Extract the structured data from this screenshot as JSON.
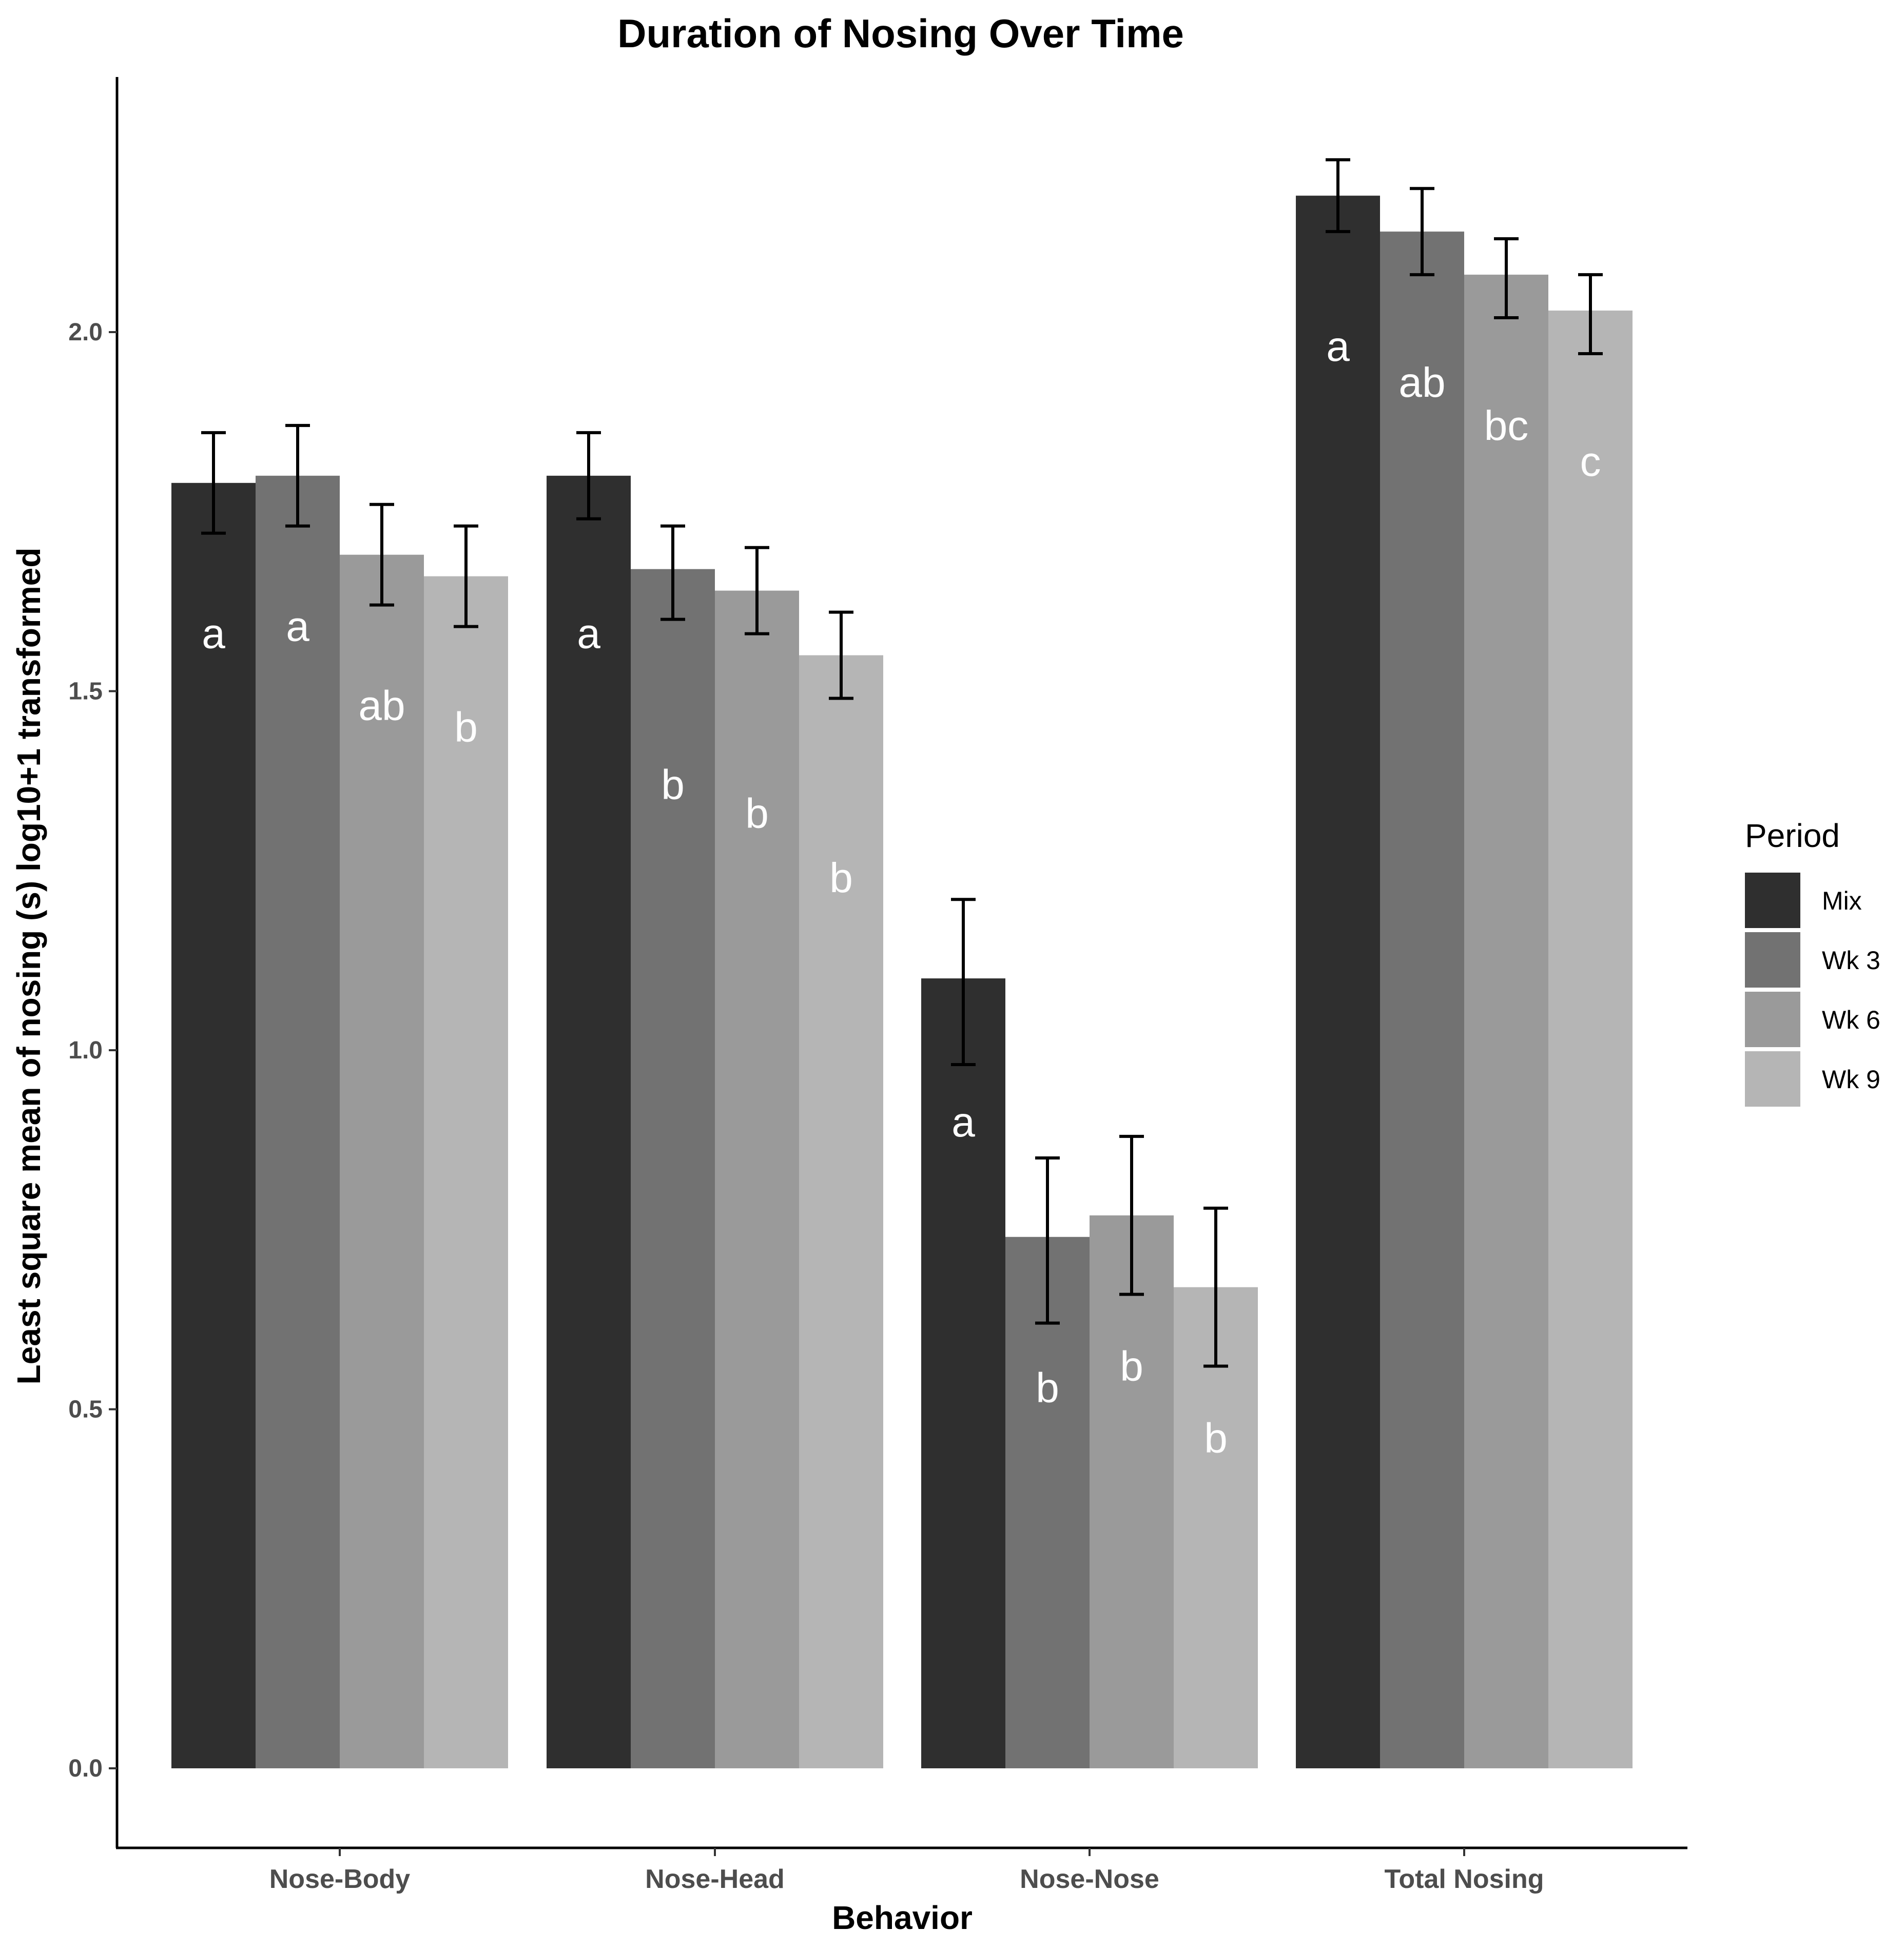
{
  "chart_data": {
    "type": "bar",
    "title": "Duration of Nosing Over Time",
    "xlabel": "Behavior",
    "ylabel": "Least square mean of nosing (s) log10+1 transformed",
    "ylim": [
      -0.11,
      2.35
    ],
    "yticks": [
      0.0,
      0.5,
      1.0,
      1.5,
      2.0
    ],
    "ytick_labels": [
      "0.0",
      "0.5",
      "1.0",
      "1.5",
      "2.0"
    ],
    "categories": [
      "Nose-Body",
      "Nose-Head",
      "Nose-Nose",
      "Total Nosing"
    ],
    "legend": {
      "title": "Period",
      "position": "right"
    },
    "series": [
      {
        "name": "Mix",
        "color": "#2f2f2f",
        "values": [
          1.79,
          1.8,
          1.1,
          2.19
        ],
        "err_low": [
          1.72,
          1.74,
          0.98,
          2.14
        ],
        "err_high": [
          1.86,
          1.86,
          1.21,
          2.24
        ],
        "labels": [
          "a",
          "a",
          "a",
          "a"
        ]
      },
      {
        "name": "Wk 3",
        "color": "#727272",
        "values": [
          1.8,
          1.67,
          0.74,
          2.14
        ],
        "err_low": [
          1.73,
          1.6,
          0.62,
          2.08
        ],
        "err_high": [
          1.87,
          1.73,
          0.85,
          2.2
        ],
        "labels": [
          "a",
          "b",
          "b",
          "ab"
        ]
      },
      {
        "name": "Wk 6",
        "color": "#9a9a9a",
        "values": [
          1.69,
          1.64,
          0.77,
          2.08
        ],
        "err_low": [
          1.62,
          1.58,
          0.66,
          2.02
        ],
        "err_high": [
          1.76,
          1.7,
          0.88,
          2.13
        ],
        "labels": [
          "ab",
          "b",
          "b",
          "bc"
        ]
      },
      {
        "name": "Wk 9",
        "color": "#b5b5b5",
        "values": [
          1.66,
          1.55,
          0.67,
          2.03
        ],
        "err_low": [
          1.59,
          1.49,
          0.56,
          1.97
        ],
        "err_high": [
          1.73,
          1.61,
          0.78,
          2.08
        ],
        "labels": [
          "b",
          "b",
          "b",
          "c"
        ]
      }
    ],
    "sig_label_y": [
      [
        1.56,
        1.56,
        0.88,
        1.96
      ],
      [
        1.57,
        1.35,
        0.51,
        1.91
      ],
      [
        1.46,
        1.31,
        0.54,
        1.85
      ],
      [
        1.43,
        1.22,
        0.44,
        1.8
      ]
    ]
  }
}
